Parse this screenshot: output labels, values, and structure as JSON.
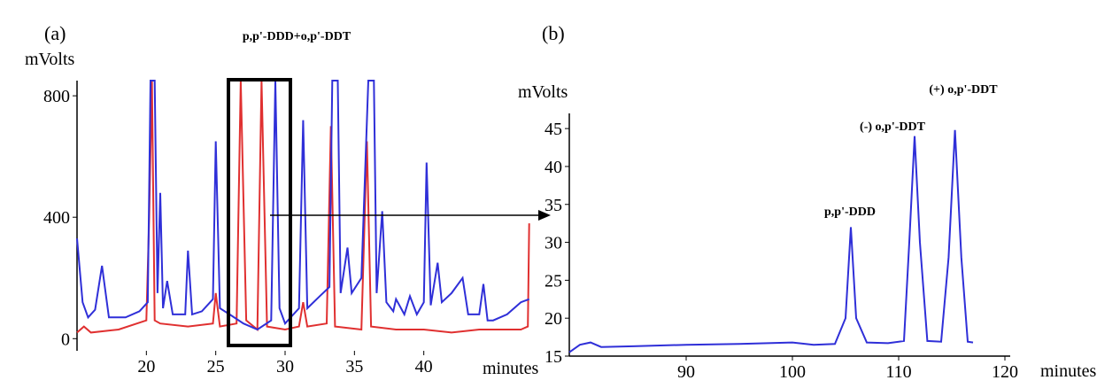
{
  "chart_data": [
    {
      "type": "line",
      "panel_label": "(a)",
      "title": "p,p'-DDD+o,p'-DDT",
      "y_label": "mVolts",
      "x_label": "minutes",
      "xlim": [
        15,
        48
      ],
      "ylim": [
        -40,
        850
      ],
      "xticks": [
        20,
        25,
        30,
        35,
        40
      ],
      "yticks": [
        0,
        400,
        800
      ],
      "series": [
        {
          "color": "#e03030",
          "x": [
            15,
            15.5,
            16,
            18,
            20,
            20.2,
            20.4,
            20.6,
            21,
            23,
            24.8,
            25,
            25.3,
            26.5,
            26.8,
            27.2,
            28,
            28.3,
            28.7,
            30,
            31,
            31.3,
            31.6,
            33,
            33.3,
            33.6,
            35.5,
            35.9,
            36.2,
            38,
            40,
            42,
            44,
            45,
            47,
            47.5,
            47.6
          ],
          "values": [
            20,
            40,
            20,
            30,
            60,
            400,
            850,
            60,
            50,
            40,
            50,
            150,
            40,
            50,
            850,
            60,
            30,
            850,
            40,
            30,
            40,
            120,
            40,
            50,
            700,
            40,
            30,
            650,
            40,
            30,
            30,
            20,
            30,
            30,
            30,
            40,
            380
          ]
        },
        {
          "color": "#2f2fd8",
          "x": [
            15,
            15.4,
            15.8,
            16.3,
            16.8,
            17.3,
            18.5,
            19.5,
            20.1,
            20.3,
            20.6,
            20.8,
            21,
            21.2,
            21.5,
            21.9,
            22.8,
            23,
            23.3,
            24,
            24.8,
            25,
            25.3,
            26,
            27,
            28,
            29,
            29.3,
            29.6,
            30,
            31,
            31.3,
            31.6,
            32.5,
            33.2,
            33.4,
            33.8,
            34,
            34.5,
            34.8,
            35.5,
            36,
            36.4,
            36.6,
            37,
            37.3,
            37.8,
            38,
            38.6,
            39,
            39.5,
            40,
            40.2,
            40.5,
            41,
            41.3,
            42,
            42.8,
            43.2,
            44,
            44.3,
            44.6,
            45,
            46,
            47,
            47.6
          ],
          "values": [
            330,
            120,
            70,
            95,
            240,
            70,
            70,
            90,
            120,
            850,
            850,
            150,
            480,
            100,
            190,
            80,
            80,
            290,
            80,
            90,
            130,
            650,
            100,
            80,
            50,
            30,
            60,
            850,
            100,
            50,
            100,
            720,
            100,
            140,
            170,
            850,
            850,
            150,
            300,
            150,
            200,
            850,
            850,
            150,
            420,
            120,
            90,
            130,
            80,
            140,
            80,
            120,
            580,
            110,
            250,
            120,
            150,
            200,
            80,
            80,
            180,
            60,
            60,
            80,
            120,
            130
          ]
        }
      ]
    },
    {
      "type": "line",
      "panel_label": "(b)",
      "y_label": "mVolts",
      "x_label": "minutes",
      "xlim": [
        79,
        120.5
      ],
      "ylim": [
        15,
        47
      ],
      "xticks": [
        90,
        100,
        110,
        120
      ],
      "yticks": [
        15,
        20,
        25,
        30,
        35,
        40,
        45
      ],
      "annotations": [
        "p,p'-DDD",
        "(-) o,p'-DDT",
        "(+) o,p'-DDT"
      ],
      "series": [
        {
          "color": "#2f2fd8",
          "x": [
            79,
            80,
            81,
            82,
            85,
            90,
            95,
            100,
            102,
            104,
            105,
            105.5,
            106,
            107,
            109,
            110.5,
            111,
            111.5,
            112,
            112.7,
            114,
            114.7,
            115.3,
            115.9,
            116.5,
            117
          ],
          "values": [
            15.5,
            16.5,
            16.8,
            16.2,
            16.3,
            16.5,
            16.6,
            16.8,
            16.5,
            16.6,
            20,
            32,
            20,
            16.8,
            16.7,
            17,
            30,
            44,
            30,
            17,
            16.9,
            28,
            44.8,
            28,
            16.9,
            16.8
          ]
        }
      ]
    }
  ]
}
